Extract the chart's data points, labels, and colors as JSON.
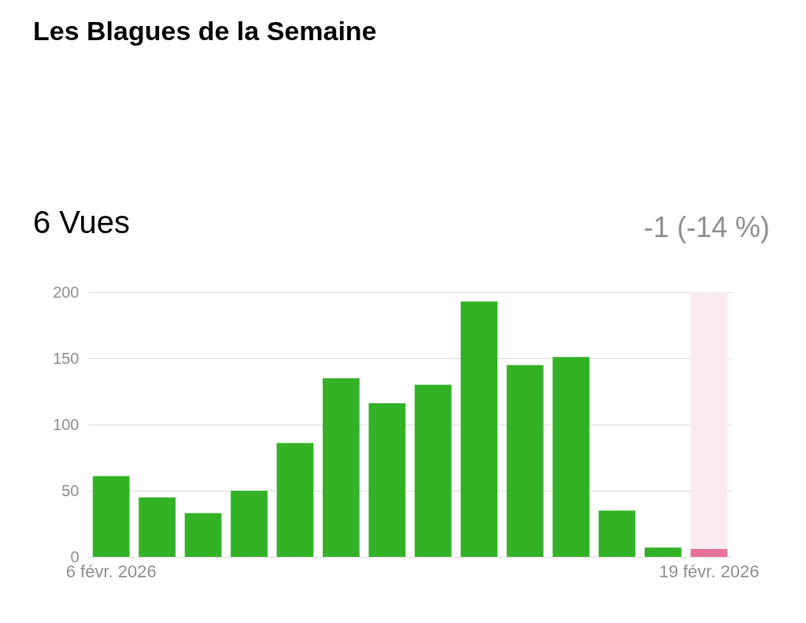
{
  "chart_data": {
    "type": "bar",
    "title": "Les Blagues de la Semaine",
    "annotations": [
      "6 Vues",
      "-1 (-14 %)"
    ],
    "categories": [
      "6 févr. 2026",
      null,
      null,
      null,
      null,
      null,
      null,
      null,
      null,
      null,
      null,
      null,
      null,
      "19 févr. 2026"
    ],
    "values": [
      61,
      45,
      33,
      50,
      86,
      135,
      116,
      130,
      193,
      145,
      151,
      35,
      7,
      6
    ],
    "colors": [
      "#33b226",
      "#33b226",
      "#33b226",
      "#33b226",
      "#33b226",
      "#33b226",
      "#33b226",
      "#33b226",
      "#33b226",
      "#33b226",
      "#33b226",
      "#33b226",
      "#33b226",
      "#e8709a"
    ],
    "bands": [
      {
        "axis": "x",
        "from": "19 févr. 2026",
        "to": "19 févr. 2026",
        "color": "#fbeaf0"
      }
    ],
    "ylim": [
      0,
      200
    ],
    "yticks": [
      0,
      50,
      100,
      150,
      200
    ],
    "grid": "y"
  }
}
